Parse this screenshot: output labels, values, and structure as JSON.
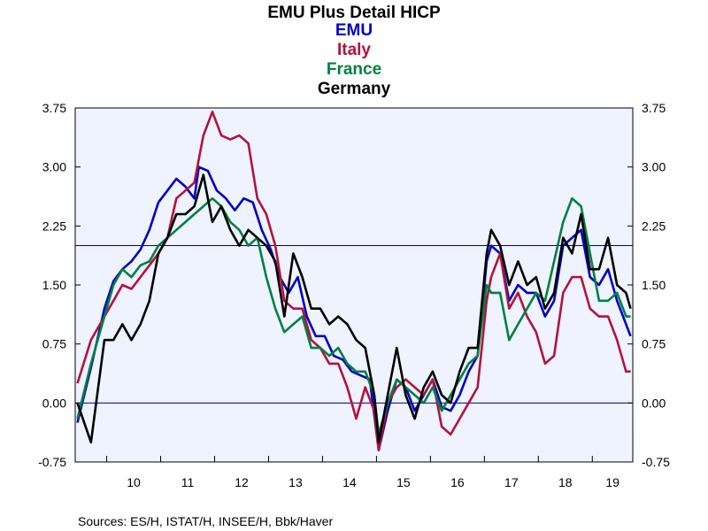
{
  "chart_data": {
    "type": "line",
    "title": "EMU Plus Detail HICP",
    "xlabel": "",
    "ylabel": "",
    "x_start": "2009-06",
    "x_end": "2019-09",
    "ylim": [
      -0.75,
      3.75
    ],
    "y_ticks": [
      "3.75",
      "3.00",
      "2.25",
      "1.50",
      "0.75",
      "0.00",
      "-0.75"
    ],
    "y_tick_values": [
      3.75,
      3.0,
      2.25,
      1.5,
      0.75,
      0.0,
      -0.75
    ],
    "x_tick_labels": [
      "10",
      "11",
      "12",
      "13",
      "14",
      "15",
      "16",
      "17",
      "18",
      "19"
    ],
    "x_tick_years": [
      2010,
      2011,
      2012,
      2013,
      2014,
      2015,
      2016,
      2017,
      2018,
      2019
    ],
    "reference_line": 2.0,
    "zero_line": 0.0,
    "grid": false,
    "legend": "top-center",
    "series": [
      {
        "name": "EMU",
        "color": "#0000c8",
        "points": [
          [
            "2009-06",
            -0.25
          ],
          [
            "2009-09",
            0.45
          ],
          [
            "2009-12",
            1.2
          ],
          [
            "2010-02",
            1.55
          ],
          [
            "2010-04",
            1.7
          ],
          [
            "2010-06",
            1.8
          ],
          [
            "2010-08",
            1.95
          ],
          [
            "2010-10",
            2.2
          ],
          [
            "2010-12",
            2.55
          ],
          [
            "2011-02",
            2.7
          ],
          [
            "2011-04",
            2.85
          ],
          [
            "2011-06",
            2.75
          ],
          [
            "2011-08",
            2.6
          ],
          [
            "2011-09",
            3.0
          ],
          [
            "2011-11",
            2.95
          ],
          [
            "2012-01",
            2.7
          ],
          [
            "2012-03",
            2.6
          ],
          [
            "2012-05",
            2.45
          ],
          [
            "2012-07",
            2.6
          ],
          [
            "2012-09",
            2.55
          ],
          [
            "2012-11",
            2.2
          ],
          [
            "2013-01",
            1.95
          ],
          [
            "2013-03",
            1.6
          ],
          [
            "2013-05",
            1.4
          ],
          [
            "2013-07",
            1.6
          ],
          [
            "2013-09",
            1.1
          ],
          [
            "2013-11",
            0.85
          ],
          [
            "2014-01",
            0.85
          ],
          [
            "2014-03",
            0.6
          ],
          [
            "2014-05",
            0.55
          ],
          [
            "2014-07",
            0.4
          ],
          [
            "2014-09",
            0.35
          ],
          [
            "2014-11",
            0.3
          ],
          [
            "2015-01",
            -0.6
          ],
          [
            "2015-03",
            -0.1
          ],
          [
            "2015-05",
            0.3
          ],
          [
            "2015-07",
            0.2
          ],
          [
            "2015-09",
            -0.1
          ],
          [
            "2015-11",
            0.1
          ],
          [
            "2016-01",
            0.3
          ],
          [
            "2016-03",
            -0.05
          ],
          [
            "2016-05",
            -0.1
          ],
          [
            "2016-07",
            0.1
          ],
          [
            "2016-09",
            0.4
          ],
          [
            "2016-11",
            0.6
          ],
          [
            "2017-01",
            1.8
          ],
          [
            "2017-02",
            2.0
          ],
          [
            "2017-04",
            1.9
          ],
          [
            "2017-06",
            1.3
          ],
          [
            "2017-08",
            1.5
          ],
          [
            "2017-10",
            1.4
          ],
          [
            "2017-12",
            1.4
          ],
          [
            "2018-02",
            1.1
          ],
          [
            "2018-04",
            1.3
          ],
          [
            "2018-06",
            2.0
          ],
          [
            "2018-08",
            2.1
          ],
          [
            "2018-10",
            2.2
          ],
          [
            "2018-12",
            1.6
          ],
          [
            "2019-02",
            1.5
          ],
          [
            "2019-04",
            1.7
          ],
          [
            "2019-06",
            1.3
          ],
          [
            "2019-08",
            1.0
          ],
          [
            "2019-09",
            0.85
          ]
        ]
      },
      {
        "name": "Italy",
        "color": "#b4123c",
        "points": [
          [
            "2009-06",
            0.25
          ],
          [
            "2009-09",
            0.8
          ],
          [
            "2009-12",
            1.1
          ],
          [
            "2010-02",
            1.3
          ],
          [
            "2010-04",
            1.5
          ],
          [
            "2010-06",
            1.45
          ],
          [
            "2010-08",
            1.6
          ],
          [
            "2010-10",
            1.75
          ],
          [
            "2010-12",
            1.9
          ],
          [
            "2011-02",
            2.1
          ],
          [
            "2011-04",
            2.6
          ],
          [
            "2011-06",
            2.7
          ],
          [
            "2011-08",
            2.8
          ],
          [
            "2011-10",
            3.4
          ],
          [
            "2011-12",
            3.7
          ],
          [
            "2012-02",
            3.4
          ],
          [
            "2012-04",
            3.35
          ],
          [
            "2012-06",
            3.4
          ],
          [
            "2012-08",
            3.3
          ],
          [
            "2012-10",
            2.6
          ],
          [
            "2012-12",
            2.4
          ],
          [
            "2013-02",
            2.0
          ],
          [
            "2013-04",
            1.3
          ],
          [
            "2013-06",
            1.2
          ],
          [
            "2013-08",
            1.2
          ],
          [
            "2013-10",
            0.8
          ],
          [
            "2013-12",
            0.7
          ],
          [
            "2014-02",
            0.5
          ],
          [
            "2014-04",
            0.5
          ],
          [
            "2014-06",
            0.2
          ],
          [
            "2014-08",
            -0.2
          ],
          [
            "2014-10",
            0.2
          ],
          [
            "2014-12",
            -0.1
          ],
          [
            "2015-01",
            -0.6
          ],
          [
            "2015-03",
            0.0
          ],
          [
            "2015-05",
            0.2
          ],
          [
            "2015-07",
            0.3
          ],
          [
            "2015-09",
            0.2
          ],
          [
            "2015-11",
            0.1
          ],
          [
            "2016-01",
            0.3
          ],
          [
            "2016-03",
            -0.3
          ],
          [
            "2016-05",
            -0.4
          ],
          [
            "2016-07",
            -0.2
          ],
          [
            "2016-09",
            0.0
          ],
          [
            "2016-11",
            0.2
          ],
          [
            "2017-01",
            1.3
          ],
          [
            "2017-02",
            1.6
          ],
          [
            "2017-04",
            1.9
          ],
          [
            "2017-06",
            1.2
          ],
          [
            "2017-08",
            1.4
          ],
          [
            "2017-10",
            1.1
          ],
          [
            "2017-12",
            0.9
          ],
          [
            "2018-02",
            0.5
          ],
          [
            "2018-04",
            0.6
          ],
          [
            "2018-06",
            1.4
          ],
          [
            "2018-08",
            1.6
          ],
          [
            "2018-10",
            1.6
          ],
          [
            "2018-12",
            1.2
          ],
          [
            "2019-02",
            1.1
          ],
          [
            "2019-04",
            1.1
          ],
          [
            "2019-06",
            0.8
          ],
          [
            "2019-08",
            0.4
          ],
          [
            "2019-09",
            0.4
          ]
        ]
      },
      {
        "name": "France",
        "color": "#008040",
        "points": [
          [
            "2009-06",
            -0.2
          ],
          [
            "2009-09",
            0.5
          ],
          [
            "2009-12",
            1.1
          ],
          [
            "2010-02",
            1.5
          ],
          [
            "2010-04",
            1.7
          ],
          [
            "2010-06",
            1.6
          ],
          [
            "2010-08",
            1.75
          ],
          [
            "2010-10",
            1.8
          ],
          [
            "2010-12",
            2.0
          ],
          [
            "2011-02",
            2.1
          ],
          [
            "2011-04",
            2.2
          ],
          [
            "2011-06",
            2.3
          ],
          [
            "2011-08",
            2.4
          ],
          [
            "2011-10",
            2.5
          ],
          [
            "2011-12",
            2.6
          ],
          [
            "2012-02",
            2.5
          ],
          [
            "2012-04",
            2.3
          ],
          [
            "2012-06",
            2.2
          ],
          [
            "2012-08",
            2.0
          ],
          [
            "2012-10",
            2.1
          ],
          [
            "2012-12",
            1.6
          ],
          [
            "2013-02",
            1.2
          ],
          [
            "2013-04",
            0.9
          ],
          [
            "2013-06",
            1.0
          ],
          [
            "2013-08",
            1.1
          ],
          [
            "2013-10",
            0.7
          ],
          [
            "2013-12",
            0.7
          ],
          [
            "2014-02",
            0.6
          ],
          [
            "2014-04",
            0.7
          ],
          [
            "2014-06",
            0.5
          ],
          [
            "2014-08",
            0.4
          ],
          [
            "2014-10",
            0.4
          ],
          [
            "2014-12",
            0.1
          ],
          [
            "2015-01",
            -0.4
          ],
          [
            "2015-03",
            0.0
          ],
          [
            "2015-05",
            0.3
          ],
          [
            "2015-07",
            0.2
          ],
          [
            "2015-09",
            0.1
          ],
          [
            "2015-11",
            0.0
          ],
          [
            "2016-01",
            0.2
          ],
          [
            "2016-03",
            -0.1
          ],
          [
            "2016-05",
            0.1
          ],
          [
            "2016-07",
            0.3
          ],
          [
            "2016-09",
            0.5
          ],
          [
            "2016-11",
            0.6
          ],
          [
            "2017-01",
            1.5
          ],
          [
            "2017-02",
            1.4
          ],
          [
            "2017-04",
            1.4
          ],
          [
            "2017-06",
            0.8
          ],
          [
            "2017-08",
            1.0
          ],
          [
            "2017-10",
            1.2
          ],
          [
            "2017-12",
            1.4
          ],
          [
            "2018-02",
            1.3
          ],
          [
            "2018-04",
            1.8
          ],
          [
            "2018-06",
            2.3
          ],
          [
            "2018-08",
            2.6
          ],
          [
            "2018-10",
            2.5
          ],
          [
            "2018-12",
            1.9
          ],
          [
            "2019-02",
            1.3
          ],
          [
            "2019-04",
            1.3
          ],
          [
            "2019-06",
            1.4
          ],
          [
            "2019-08",
            1.1
          ],
          [
            "2019-09",
            1.1
          ]
        ]
      },
      {
        "name": "Germany",
        "color": "#000000",
        "points": [
          [
            "2009-06",
            0.0
          ],
          [
            "2009-09",
            -0.5
          ],
          [
            "2009-12",
            0.8
          ],
          [
            "2010-02",
            0.8
          ],
          [
            "2010-04",
            1.0
          ],
          [
            "2010-06",
            0.8
          ],
          [
            "2010-08",
            1.0
          ],
          [
            "2010-10",
            1.3
          ],
          [
            "2010-12",
            1.9
          ],
          [
            "2011-02",
            2.1
          ],
          [
            "2011-04",
            2.4
          ],
          [
            "2011-06",
            2.4
          ],
          [
            "2011-08",
            2.5
          ],
          [
            "2011-10",
            2.9
          ],
          [
            "2011-12",
            2.3
          ],
          [
            "2012-02",
            2.5
          ],
          [
            "2012-04",
            2.2
          ],
          [
            "2012-06",
            2.0
          ],
          [
            "2012-08",
            2.2
          ],
          [
            "2012-10",
            2.1
          ],
          [
            "2012-12",
            2.0
          ],
          [
            "2013-02",
            1.8
          ],
          [
            "2013-04",
            1.1
          ],
          [
            "2013-06",
            1.9
          ],
          [
            "2013-08",
            1.6
          ],
          [
            "2013-10",
            1.2
          ],
          [
            "2013-12",
            1.2
          ],
          [
            "2014-02",
            1.0
          ],
          [
            "2014-04",
            1.1
          ],
          [
            "2014-06",
            1.0
          ],
          [
            "2014-08",
            0.8
          ],
          [
            "2014-10",
            0.7
          ],
          [
            "2014-12",
            0.1
          ],
          [
            "2015-01",
            -0.5
          ],
          [
            "2015-03",
            0.1
          ],
          [
            "2015-05",
            0.7
          ],
          [
            "2015-07",
            0.1
          ],
          [
            "2015-09",
            -0.2
          ],
          [
            "2015-11",
            0.2
          ],
          [
            "2016-01",
            0.4
          ],
          [
            "2016-03",
            0.1
          ],
          [
            "2016-05",
            0.0
          ],
          [
            "2016-07",
            0.4
          ],
          [
            "2016-09",
            0.7
          ],
          [
            "2016-11",
            0.7
          ],
          [
            "2017-01",
            1.9
          ],
          [
            "2017-02",
            2.2
          ],
          [
            "2017-04",
            2.0
          ],
          [
            "2017-06",
            1.5
          ],
          [
            "2017-08",
            1.8
          ],
          [
            "2017-10",
            1.5
          ],
          [
            "2017-12",
            1.6
          ],
          [
            "2018-02",
            1.2
          ],
          [
            "2018-04",
            1.4
          ],
          [
            "2018-06",
            2.1
          ],
          [
            "2018-08",
            1.9
          ],
          [
            "2018-10",
            2.4
          ],
          [
            "2018-12",
            1.7
          ],
          [
            "2019-02",
            1.7
          ],
          [
            "2019-04",
            2.1
          ],
          [
            "2019-06",
            1.5
          ],
          [
            "2019-08",
            1.4
          ],
          [
            "2019-09",
            1.2
          ]
        ]
      }
    ]
  },
  "sources": "Sources:  ES/H, ISTAT/H, INSEE/H, Bbk/Haver"
}
